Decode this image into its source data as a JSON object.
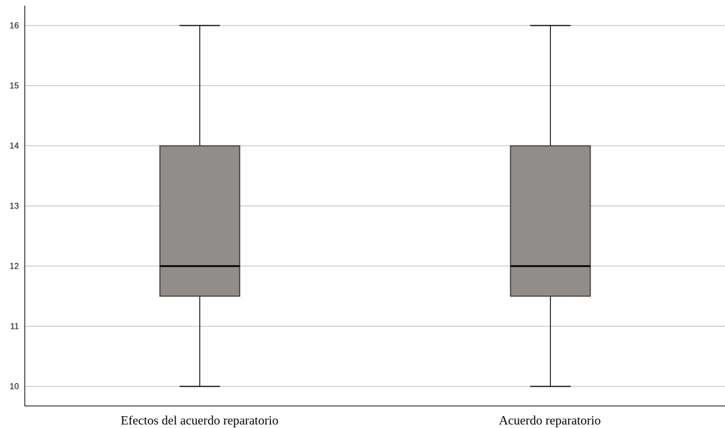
{
  "chart_data": {
    "type": "boxplot",
    "title": "",
    "xlabel": "",
    "ylabel": "",
    "ylim": [
      9.8,
      16.35
    ],
    "yticks": [
      10,
      11,
      12,
      13,
      14,
      15,
      16
    ],
    "grid": true,
    "legend": "none",
    "categories": [
      "Efectos del acuerdo reparatorio",
      "Acuerdo reparatorio"
    ],
    "boxes": [
      {
        "category": "Efectos del acuerdo reparatorio",
        "min": 10,
        "q1": 11.5,
        "median": 12,
        "q3": 14,
        "max": 16
      },
      {
        "category": "Acuerdo reparatorio",
        "min": 10,
        "q1": 11.5,
        "median": 12,
        "q3": 14,
        "max": 16
      }
    ],
    "colors": {
      "box_fill": "#918d8b",
      "box_stroke": "#3a3a3a",
      "gridline": "#c8c8c8",
      "axis": "#000000",
      "whisker": "#000000"
    }
  }
}
